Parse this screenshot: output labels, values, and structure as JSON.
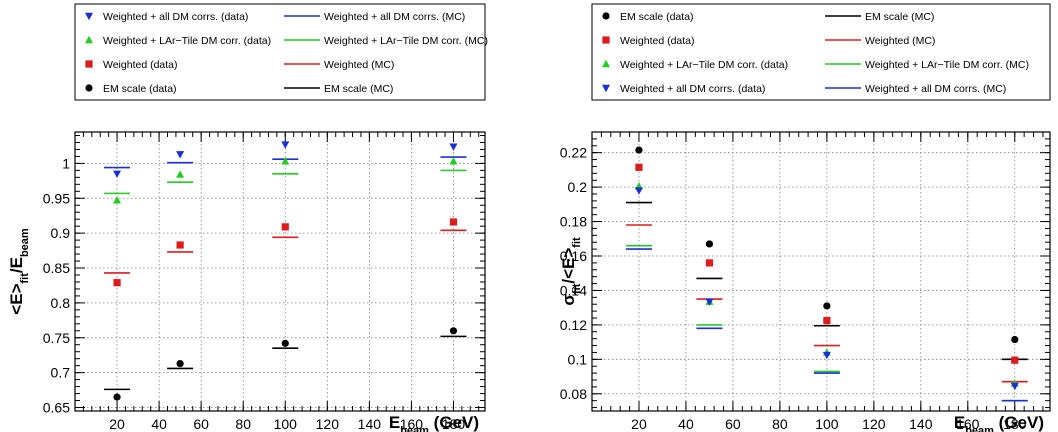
{
  "figure": "Two-panel plot of fitted response and resolution versus beam energy",
  "chart_data": [
    {
      "type": "scatter",
      "title": "",
      "xlabel": "E_beam (GeV)",
      "ylabel": "<E>_fit/E_beam",
      "xlim": [
        0,
        195
      ],
      "ylim": [
        0.645,
        1.045
      ],
      "x_ticks": [
        20,
        40,
        60,
        80,
        100,
        120,
        140,
        160,
        180
      ],
      "y_ticks": [
        0.65,
        0.7,
        0.75,
        0.8,
        0.85,
        0.9,
        0.95,
        1
      ],
      "y_tick_labels": [
        "0.65",
        "0.7",
        "0.75",
        "0.8",
        "0.85",
        "0.9",
        "0.95",
        "1"
      ],
      "grid": true,
      "legend_placement": "above-plot",
      "legend": [
        {
          "label": "Weighted + all DM corrs. (data)",
          "kind": "marker",
          "marker": "triangle-down",
          "color": "#1a2fd6"
        },
        {
          "label": "Weighted + all DM corrs. (MC)",
          "kind": "line",
          "color": "#1a2fd6"
        },
        {
          "label": "Weighted + LAr−Tile DM corr. (data)",
          "kind": "marker",
          "marker": "triangle-up",
          "color": "#22cc22"
        },
        {
          "label": "Weighted + LAr−Tile DM corr. (MC)",
          "kind": "line",
          "color": "#22cc22"
        },
        {
          "label": "Weighted (data)",
          "kind": "marker",
          "marker": "square",
          "color": "#e01b1b"
        },
        {
          "label": "Weighted (MC)",
          "kind": "line",
          "color": "#e01b1b"
        },
        {
          "label": "EM scale (data)",
          "kind": "marker",
          "marker": "circle",
          "color": "#000000"
        },
        {
          "label": "EM scale (MC)",
          "kind": "line",
          "color": "#000000"
        }
      ],
      "x": [
        20,
        50,
        100,
        180
      ],
      "series": [
        {
          "name": "EM scale (data)",
          "kind": "marker",
          "marker": "circle",
          "color": "#000000",
          "values": [
            0.665,
            0.713,
            0.742,
            0.76
          ]
        },
        {
          "name": "EM scale (MC)",
          "kind": "line",
          "color": "#000000",
          "values": [
            0.676,
            0.706,
            0.735,
            0.752
          ]
        },
        {
          "name": "Weighted (data)",
          "kind": "marker",
          "marker": "square",
          "color": "#e01b1b",
          "values": [
            0.829,
            0.883,
            0.909,
            0.916
          ]
        },
        {
          "name": "Weighted (MC)",
          "kind": "line",
          "color": "#e01b1b",
          "values": [
            0.843,
            0.873,
            0.894,
            0.904
          ]
        },
        {
          "name": "Weighted + LAr−Tile DM corr. (data)",
          "kind": "marker",
          "marker": "triangle-up",
          "color": "#22cc22",
          "values": [
            0.947,
            0.984,
            1.003,
            1.003
          ]
        },
        {
          "name": "Weighted + LAr−Tile DM corr. (MC)",
          "kind": "line",
          "color": "#22cc22",
          "values": [
            0.957,
            0.973,
            0.985,
            0.99
          ]
        },
        {
          "name": "Weighted + all DM corrs. (data)",
          "kind": "marker",
          "marker": "triangle-down",
          "color": "#1a2fd6",
          "values": [
            0.985,
            1.013,
            1.027,
            1.024
          ]
        },
        {
          "name": "Weighted + all DM corrs. (MC)",
          "kind": "line",
          "color": "#1a2fd6",
          "values": [
            0.994,
            1.001,
            1.006,
            1.009
          ]
        }
      ]
    },
    {
      "type": "scatter",
      "title": "",
      "xlabel": "E_beam (GeV)",
      "ylabel": "σ_fit/<E>_fit",
      "xlim": [
        0,
        195
      ],
      "ylim": [
        0.07,
        0.232
      ],
      "x_ticks": [
        20,
        40,
        60,
        80,
        100,
        120,
        140,
        160,
        180
      ],
      "y_ticks": [
        0.08,
        0.1,
        0.12,
        0.14,
        0.16,
        0.18,
        0.2,
        0.22
      ],
      "y_tick_labels": [
        "0.08",
        "0.1",
        "0.12",
        "0.14",
        "0.16",
        "0.18",
        "0.2",
        "0.22"
      ],
      "grid": true,
      "legend_placement": "above-plot",
      "legend": [
        {
          "label": "EM scale (data)",
          "kind": "marker",
          "marker": "circle",
          "color": "#000000"
        },
        {
          "label": "EM scale (MC)",
          "kind": "line",
          "color": "#000000"
        },
        {
          "label": "Weighted (data)",
          "kind": "marker",
          "marker": "square",
          "color": "#e01b1b"
        },
        {
          "label": "Weighted (MC)",
          "kind": "line",
          "color": "#e01b1b"
        },
        {
          "label": "Weighted + LAr−Tile DM corr. (data)",
          "kind": "marker",
          "marker": "triangle-up",
          "color": "#22cc22"
        },
        {
          "label": "Weighted + LAr−Tile DM corr. (MC)",
          "kind": "line",
          "color": "#22cc22"
        },
        {
          "label": "Weighted + all DM corrs. (data)",
          "kind": "marker",
          "marker": "triangle-down",
          "color": "#1a2fd6"
        },
        {
          "label": "Weighted + all DM corrs. (MC)",
          "kind": "line",
          "color": "#1a2fd6"
        }
      ],
      "x": [
        20,
        50,
        100,
        180
      ],
      "series": [
        {
          "name": "EM scale (data)",
          "kind": "marker",
          "marker": "circle",
          "color": "#000000",
          "values": [
            0.2215,
            0.167,
            0.131,
            0.1115
          ]
        },
        {
          "name": "EM scale (MC)",
          "kind": "line",
          "color": "#000000",
          "values": [
            0.191,
            0.147,
            0.1195,
            0.1
          ]
        },
        {
          "name": "Weighted (data)",
          "kind": "marker",
          "marker": "square",
          "color": "#e01b1b",
          "values": [
            0.2115,
            0.156,
            0.1225,
            0.0995
          ]
        },
        {
          "name": "Weighted (MC)",
          "kind": "line",
          "color": "#e01b1b",
          "values": [
            0.178,
            0.135,
            0.108,
            0.087
          ]
        },
        {
          "name": "Weighted + LAr−Tile DM corr. (data)",
          "kind": "marker",
          "marker": "triangle-up",
          "color": "#22cc22",
          "values": [
            0.2005,
            0.1335,
            0.104,
            0.086
          ]
        },
        {
          "name": "Weighted + LAr−Tile DM corr. (MC)",
          "kind": "line",
          "color": "#22cc22",
          "values": [
            0.166,
            0.12,
            0.093,
            0.076
          ]
        },
        {
          "name": "Weighted + all DM corrs. (data)",
          "kind": "marker",
          "marker": "triangle-down",
          "color": "#1a2fd6",
          "values": [
            0.198,
            0.1335,
            0.1025,
            0.0845
          ]
        },
        {
          "name": "Weighted + all DM corrs. (MC)",
          "kind": "line",
          "color": "#1a2fd6",
          "values": [
            0.164,
            0.118,
            0.092,
            0.076
          ]
        }
      ]
    }
  ]
}
